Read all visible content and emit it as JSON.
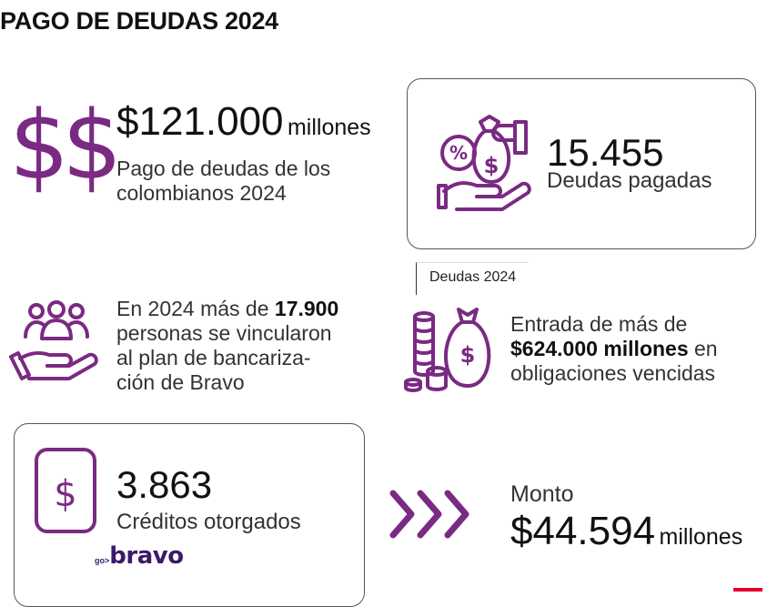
{
  "title": "PAGO DE DEUDAS 2024",
  "colors": {
    "accent": "#7a2a83",
    "text": "#111111",
    "subtext": "#333333",
    "brand": "#3a1a6b"
  },
  "block1": {
    "icon": "double-dollar-icon",
    "symbol": "$$",
    "amount": "$121.000",
    "unit": "millones",
    "line1": "Pago de deudas de los",
    "line2": "colombianos 2024"
  },
  "block2": {
    "icon": "money-bag-percent-hand-icon",
    "value": "15.455",
    "label": "Deudas pagadas"
  },
  "tag": {
    "label": "Deudas 2024"
  },
  "block3": {
    "icon": "people-hand-icon",
    "pre": "En 2024 más de ",
    "bold": "17.900",
    "line2": "personas se vincularon",
    "line3": "al plan de bancariza-",
    "line4": "ción de Bravo"
  },
  "block4": {
    "icon": "coins-money-bag-icon",
    "line1": "Entrada de más de",
    "bold": "$624.000 millones",
    "after": " en",
    "line3": "obligaciones vencidas"
  },
  "block5": {
    "icon": "dollar-card-icon",
    "value": "3.863",
    "label": "Créditos otorgados",
    "brand_go": "go",
    "brand_name": "bravo"
  },
  "block6": {
    "icon": "triple-chevron-icon",
    "label": "Monto",
    "amount": "$44.594",
    "unit": "millones"
  }
}
